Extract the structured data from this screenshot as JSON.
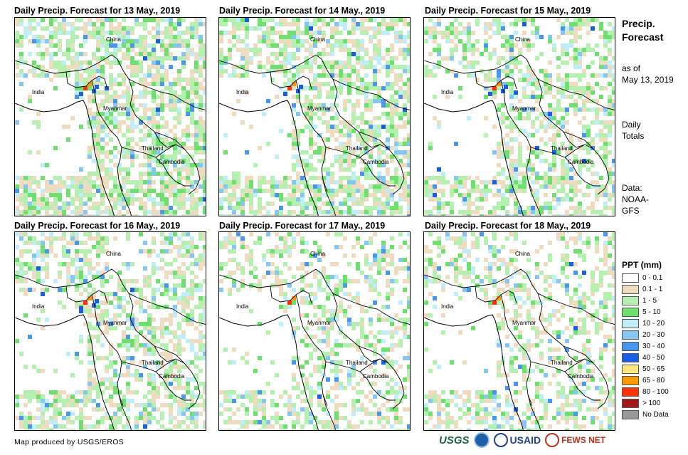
{
  "panels": [
    {
      "title": "Daily Precip. Forecast for 13 May., 2019",
      "wet": "high"
    },
    {
      "title": "Daily Precip. Forecast for 14 May., 2019",
      "wet": "high"
    },
    {
      "title": "Daily Precip. Forecast for 15 May., 2019",
      "wet": "medium"
    },
    {
      "title": "Daily Precip. Forecast for 16 May., 2019",
      "wet": "medium"
    },
    {
      "title": "Daily Precip. Forecast for 17 May., 2019",
      "wet": "low"
    },
    {
      "title": "Daily Precip. Forecast for 18 May., 2019",
      "wet": "low"
    }
  ],
  "map_labels": {
    "china": "China",
    "india": "India",
    "myanmar": "Myanmar",
    "thailand": "Thailand",
    "cambodia": "Cambodia"
  },
  "side": {
    "title_line1": "Precip.",
    "title_line2": "Forecast",
    "asof_line1": "as of",
    "asof_line2": "May 13, 2019",
    "daily_line1": "Daily",
    "daily_line2": "Totals",
    "data_line1": "Data:",
    "data_line2": "NOAA-",
    "data_line3": "GFS"
  },
  "legend": {
    "title": "PPT (mm)",
    "items": [
      {
        "label": "0 - 0.1",
        "color": "#ffffff"
      },
      {
        "label": "0.1 - 1",
        "color": "#eedcc0"
      },
      {
        "label": "1 - 5",
        "color": "#b6f0b0"
      },
      {
        "label": "5 - 10",
        "color": "#6fe06f"
      },
      {
        "label": "10 - 20",
        "color": "#bfeef8"
      },
      {
        "label": "20 - 30",
        "color": "#86c6f0"
      },
      {
        "label": "30 - 40",
        "color": "#4a96ec"
      },
      {
        "label": "40 - 50",
        "color": "#1b5ee6"
      },
      {
        "label": "50 - 65",
        "color": "#ffe680"
      },
      {
        "label": "65 - 80",
        "color": "#ff9a00"
      },
      {
        "label": "80 - 100",
        "color": "#ff3300"
      },
      {
        "label": "> 100",
        "color": "#a01818"
      },
      {
        "label": "No Data",
        "color": "#999999"
      }
    ]
  },
  "credit": "Map produced by USGS/EROS",
  "logos": {
    "usgs": "USGS",
    "usaid": "USAID",
    "fews": "FEWS NET"
  }
}
